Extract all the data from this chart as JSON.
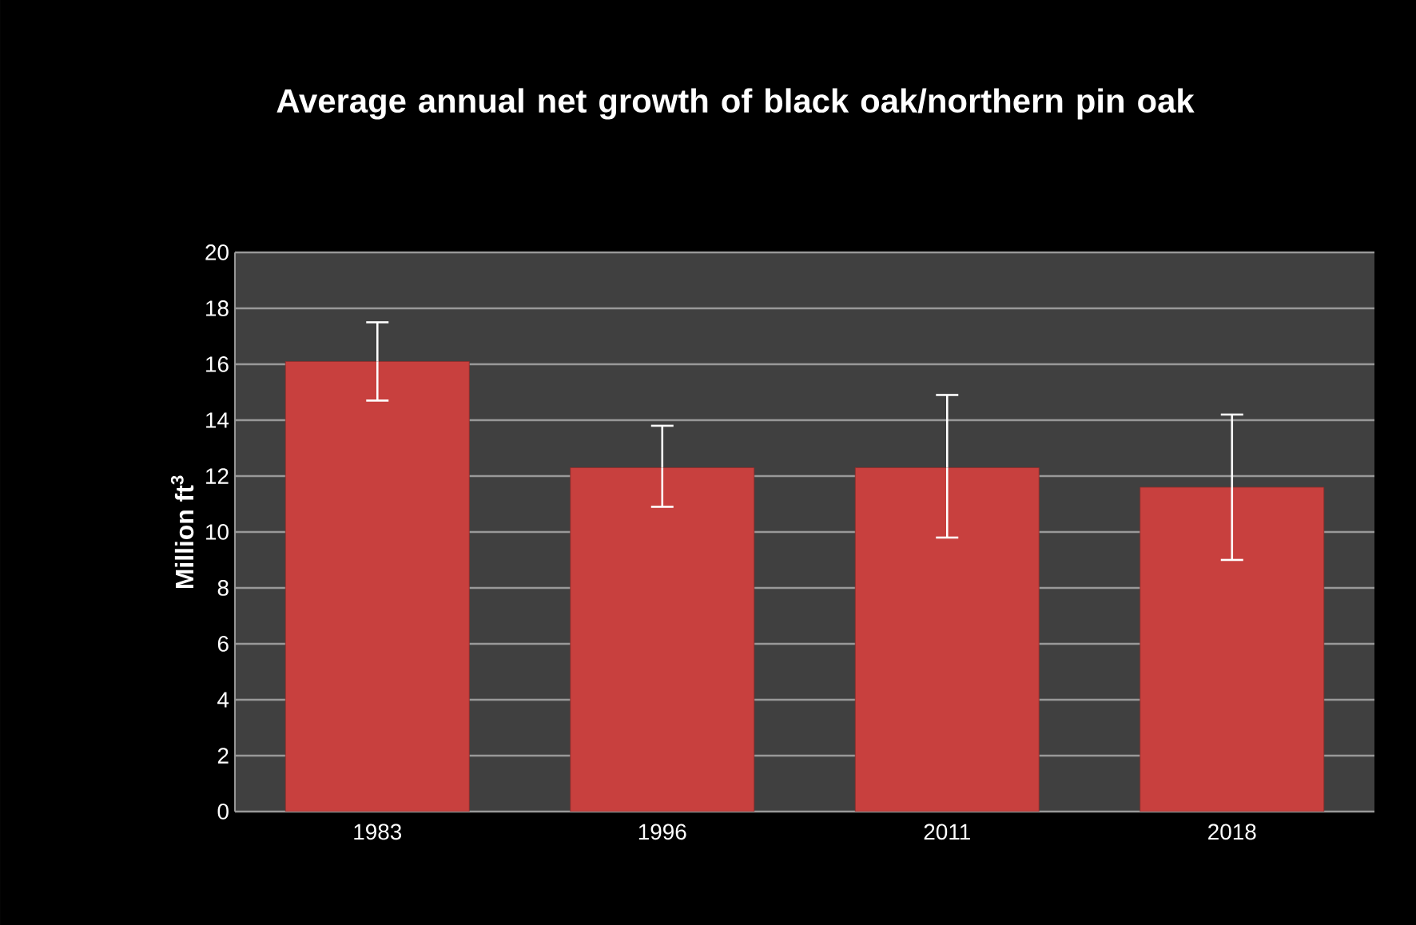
{
  "chart_data": {
    "type": "bar",
    "title": "Average annual net growth of black oak/northern pin oak",
    "ylabel": "Million ft$^{3}$",
    "categories": [
      "1983",
      "1996",
      "2011",
      "2018"
    ],
    "values": [
      16.1,
      12.3,
      12.3,
      11.6
    ],
    "errors": [
      [
        14.7,
        17.5
      ],
      [
        10.9,
        13.8
      ],
      [
        9.8,
        14.9
      ],
      [
        9.0,
        14.2
      ]
    ],
    "color": "#c8403e",
    "ylim": [
      0,
      20
    ],
    "yticks": [
      0,
      2,
      4,
      6,
      8,
      10,
      12,
      14,
      16,
      18,
      20
    ],
    "grid": "y"
  }
}
